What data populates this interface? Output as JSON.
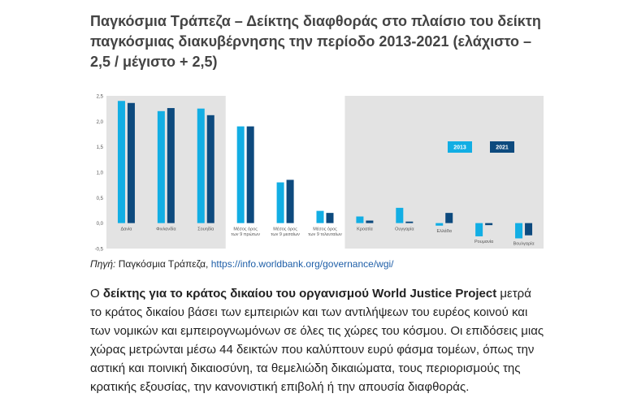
{
  "title": "Παγκόσμια Τράπεζα – Δείκτης διαφθοράς στο πλαίσιο του δείκτη παγκόσμιας διακυβέρνησης την περίοδο 2013-2021 (ελάχιστο – 2,5 / μέγιστο + 2,5)",
  "source": {
    "label": "Πηγή:",
    "text": "Παγκόσμια Τράπεζα,",
    "link": "https://info.worldbank.org/governance/wgi/"
  },
  "paragraph": {
    "p1": "Ο ",
    "b1": "δείκτης για το κράτος δικαίου του οργανισμού World Justice Project",
    "p2": " μετρά το κράτος δικαίου βάσει των εμπειριών και των αντιλήψεων του ευρέος κοινού και των νομικών και εμπειρογνωμόνων σε όλες τις χώρες του κόσμου. Οι επιδόσεις μιας χώρας μετρώνται μέσω 44 δεικτών που καλύπτουν ευρύ φάσμα τομέων, όπως την αστική και ποινική δικαιοσύνη, τα θεμελιώδη δικαιώματα, τους περιορισμούς της κρατικής εξουσίας, την κανονιστική επιβολή ή την απουσία διαφθοράς."
  },
  "colors": {
    "series_2013": "#12aee4",
    "series_2021": "#0d4a7e",
    "panel_bg": "#e3e3e3",
    "highlight_bg": "#ffffff",
    "tick_text": "#555555"
  },
  "chart_data": {
    "type": "bar",
    "categories": [
      "Δανία",
      "Φινλανδία",
      "Σουηδία",
      "Μέσος όρος των 9 πρώτων",
      "Μέσος όρος των 9 μεσαίων",
      "Μέσος όρος των 9 τελευταίων",
      "Κροατία",
      "Ουγγαρία",
      "Ελλάδα",
      "Ρουμανία",
      "Βουλγαρία"
    ],
    "series": [
      {
        "name": "2013",
        "values": [
          2.4,
          2.2,
          2.25,
          1.9,
          0.8,
          0.24,
          0.13,
          0.3,
          -0.05,
          -0.26,
          -0.3
        ]
      },
      {
        "name": "2021",
        "values": [
          2.36,
          2.26,
          2.12,
          1.9,
          0.85,
          0.2,
          0.05,
          0.03,
          0.2,
          -0.04,
          -0.24
        ]
      }
    ],
    "y_ticks": [
      "2,5",
      "2,0",
      "1,5",
      "1,0",
      "0,5",
      "0,0",
      "-0,5"
    ],
    "ylim": [
      -0.5,
      2.5
    ],
    "grid": false,
    "legend_position": "right",
    "highlight_group": [
      3,
      4,
      5
    ]
  }
}
